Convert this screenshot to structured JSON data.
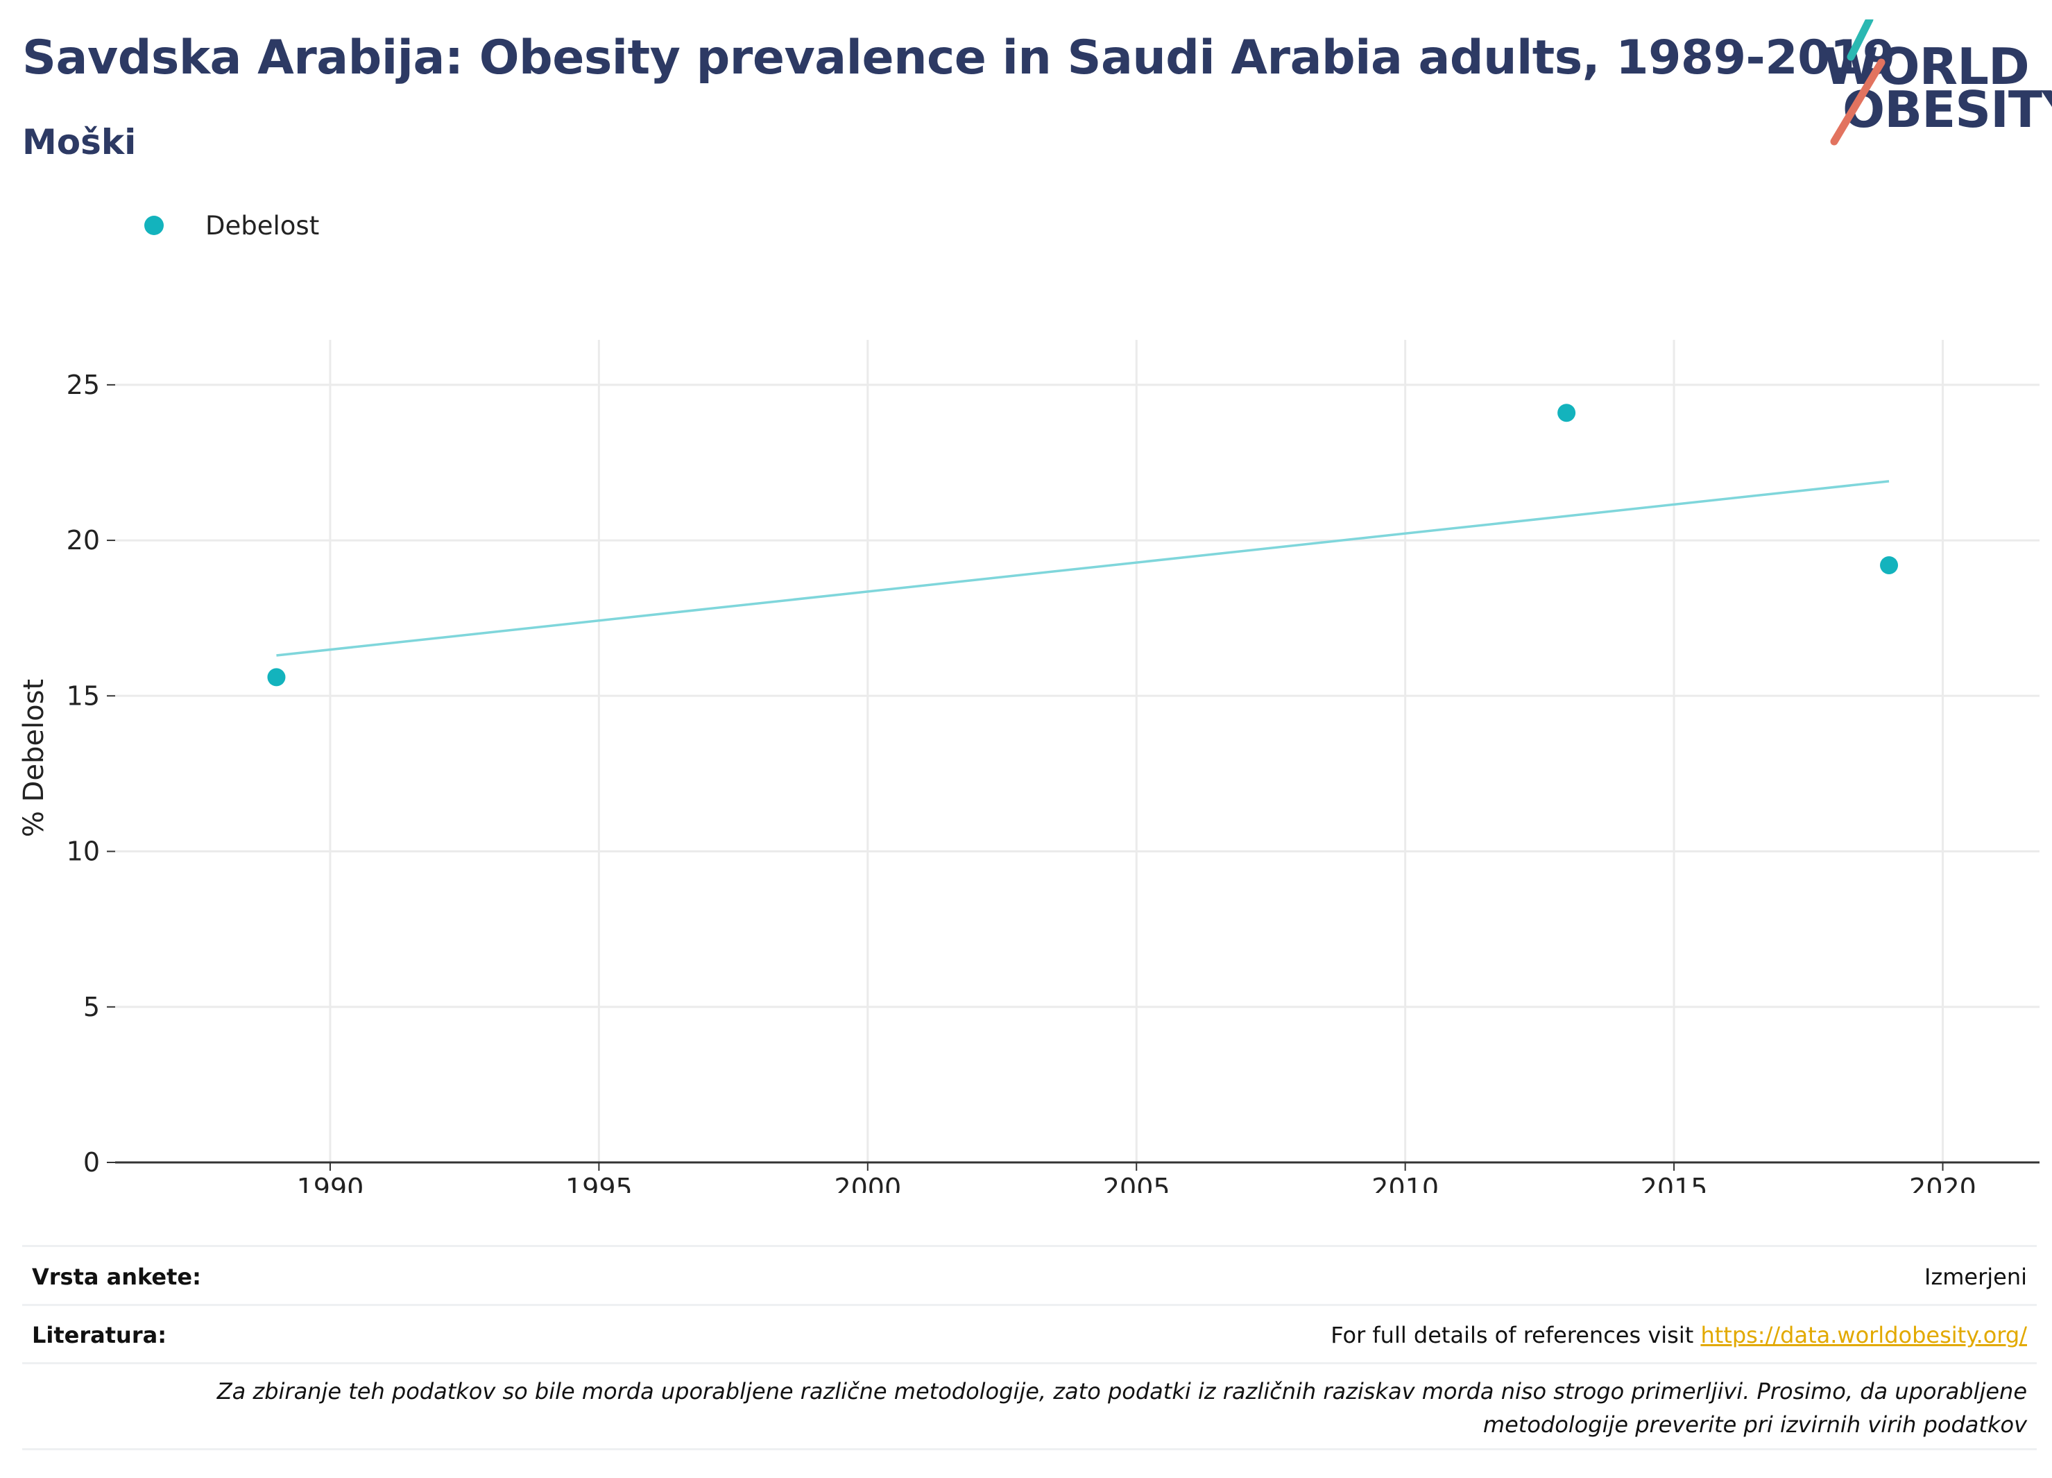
{
  "header": {
    "title": "Savdska Arabija: Obesity prevalence in Saudi Arabia adults, 1989-2019",
    "subtitle": "Moški"
  },
  "logo": {
    "line1": "WORLD",
    "line2": "OBESITY",
    "colors": {
      "text": "#2d3a64",
      "teal": "#2bb8b2",
      "coral": "#e2735f"
    }
  },
  "legend": [
    {
      "label": "Debelost",
      "color": "#13b3bd"
    }
  ],
  "chart_data": {
    "type": "scatter",
    "ylabel": "% Debelost",
    "xlim": [
      1986,
      2021.8
    ],
    "ylim": [
      0,
      26
    ],
    "x_ticks": [
      1990,
      1995,
      2000,
      2005,
      2010,
      2015,
      2020
    ],
    "y_ticks": [
      0,
      5,
      10,
      15,
      20,
      25
    ],
    "grid": true,
    "legend_position": "top-left",
    "series": [
      {
        "name": "Debelost",
        "color": "#13b3bd",
        "points": [
          {
            "x": 1989,
            "y": 15.6
          },
          {
            "x": 2013,
            "y": 24.1
          },
          {
            "x": 2019,
            "y": 19.2
          }
        ]
      }
    ],
    "trendline": {
      "color": "#7fd6db",
      "points": [
        {
          "x": 1989,
          "y": 16.3
        },
        {
          "x": 2019,
          "y": 21.9
        }
      ]
    }
  },
  "footer": {
    "survey_label": "Vrsta ankete:",
    "survey_value": "Izmerjeni",
    "refs_label": "Literatura:",
    "refs_text": "For full details of references visit ",
    "refs_link": "https://data.worldobesity.org/",
    "note": "Za zbiranje teh podatkov so bile morda uporabljene različne metodologije, zato podatki iz različnih raziskav morda niso strogo primerljivi. Prosimo, da uporabljene metodologije preverite pri izvirnih virih podatkov"
  }
}
